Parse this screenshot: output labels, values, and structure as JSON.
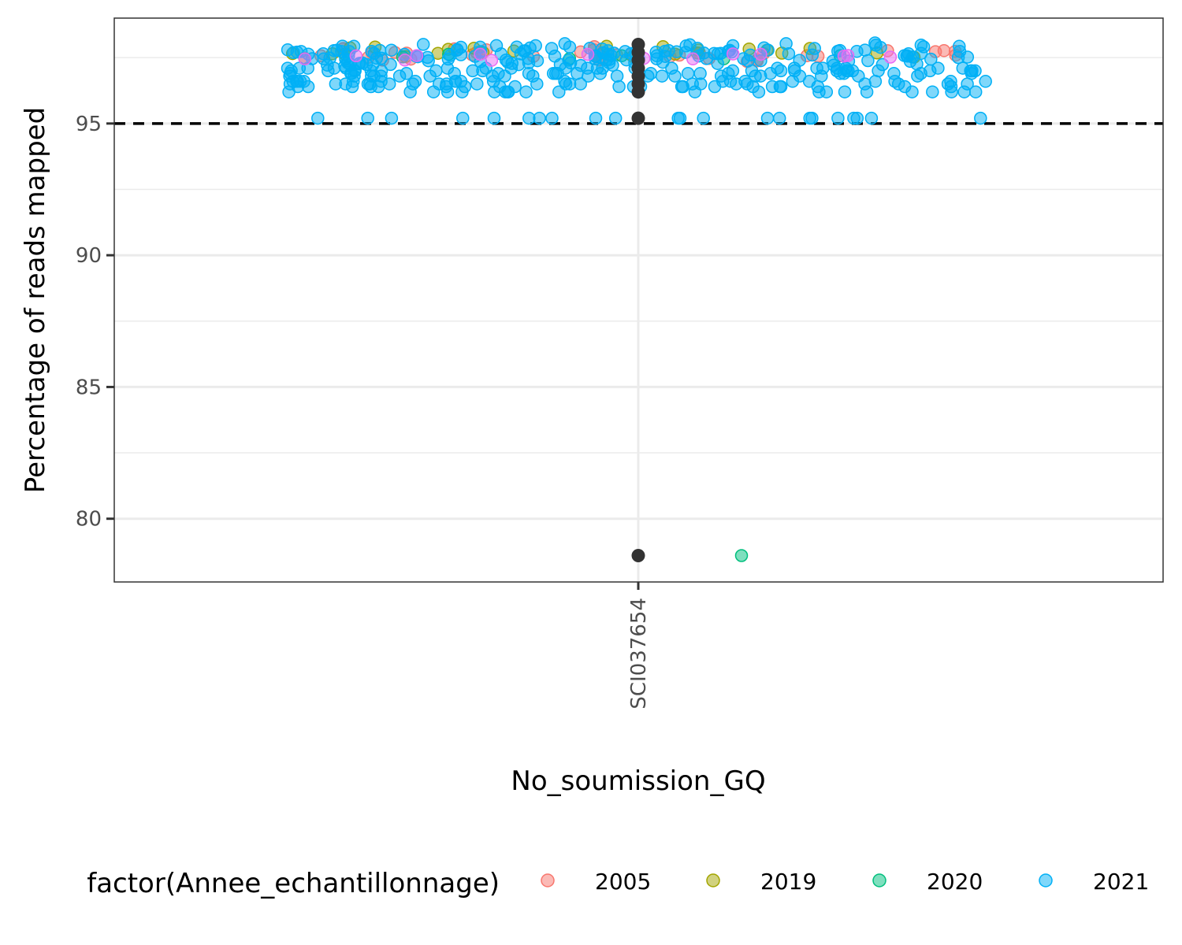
{
  "chart_data": {
    "type": "scatter",
    "xlabel": "No_soumission_GQ",
    "ylabel": "Percentage of reads mapped",
    "categories": [
      "SCI037654"
    ],
    "ylim": [
      77.6,
      99
    ],
    "yticks": [
      80,
      85,
      90,
      95
    ],
    "threshold": 95,
    "grid": true,
    "legend": {
      "position": "bottom",
      "title": "factor(Annee_echantillonnage)",
      "entries": [
        "2005",
        "2019",
        "2020",
        "2021"
      ]
    },
    "colors": {
      "2005": "#F8766D",
      "2019": "#A3A500",
      "2020": "#00BF7D",
      "2021": "#00B0F6",
      "other": "#E76BF3",
      "summary": "#333333"
    },
    "series": [
      {
        "name": "2005",
        "values": [
          97.6,
          97.7,
          97.5,
          97.6,
          97.7,
          97.5,
          97.6,
          97.7,
          97.5,
          97.6,
          97.8,
          97.7,
          97.6
        ]
      },
      {
        "name": "2019",
        "values": [
          97.8,
          97.7,
          97.7,
          97.8,
          97.6,
          97.7,
          97.8,
          97.7
        ]
      },
      {
        "name": "2020",
        "values": [
          97.7,
          97.6,
          78.6
        ]
      },
      {
        "name": "2021",
        "values": [
          97.6,
          97.5,
          97.4,
          97.7,
          97.8,
          97.3,
          97.1,
          96.9,
          96.6,
          96.4,
          96.2,
          95.2,
          97.9,
          97.0,
          96.8,
          96.5
        ]
      }
    ],
    "summary_points": [
      98.0,
      97.7,
      97.4,
      97.1,
      96.8,
      96.5,
      96.2,
      95.2,
      78.6
    ]
  }
}
